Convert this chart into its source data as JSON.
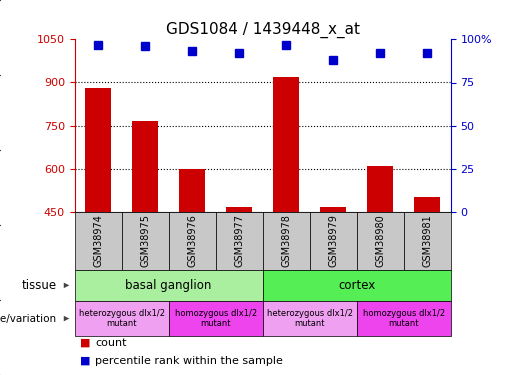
{
  "title": "GDS1084 / 1439448_x_at",
  "samples": [
    "GSM38974",
    "GSM38975",
    "GSM38976",
    "GSM38977",
    "GSM38978",
    "GSM38979",
    "GSM38980",
    "GSM38981"
  ],
  "bar_values": [
    880,
    765,
    598,
    467,
    918,
    467,
    610,
    500
  ],
  "percentile_values": [
    97,
    96,
    93,
    92,
    97,
    88,
    92,
    92
  ],
  "ylim_left": [
    450,
    1050
  ],
  "ylim_right": [
    0,
    100
  ],
  "yticks_left": [
    450,
    600,
    750,
    900,
    1050
  ],
  "yticks_right": [
    0,
    25,
    50,
    75,
    100
  ],
  "yticklabels_right": [
    "0",
    "25",
    "50",
    "75",
    "100%"
  ],
  "bar_color": "#cc0000",
  "dot_color": "#0000cc",
  "tissue_labels": [
    {
      "label": "basal ganglion",
      "start": 0,
      "end": 4,
      "color": "#aaeea0"
    },
    {
      "label": "cortex",
      "start": 4,
      "end": 8,
      "color": "#55ee55"
    }
  ],
  "genotype_labels": [
    {
      "label": "heterozygous dlx1/2\nmutant",
      "start": 0,
      "end": 2,
      "color": "#f0a0f0"
    },
    {
      "label": "homozygous dlx1/2\nmutant",
      "start": 2,
      "end": 4,
      "color": "#ee44ee"
    },
    {
      "label": "heterozygous dlx1/2\nmutant",
      "start": 4,
      "end": 6,
      "color": "#f0a0f0"
    },
    {
      "label": "homozygous dlx1/2\nmutant",
      "start": 6,
      "end": 8,
      "color": "#ee44ee"
    }
  ],
  "legend_count_color": "#cc0000",
  "legend_percentile_color": "#0000cc",
  "axis_left_color": "#cc0000",
  "axis_right_color": "#0000cc",
  "sample_box_color": "#c8c8c8",
  "grid_yticks": [
    600,
    750,
    900
  ],
  "bar_width": 0.55,
  "dot_size": 6
}
